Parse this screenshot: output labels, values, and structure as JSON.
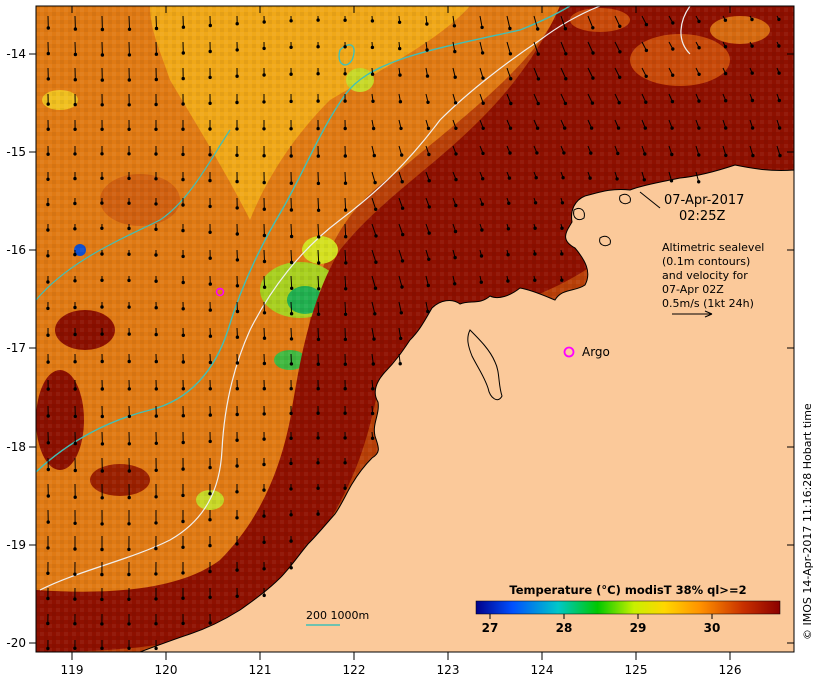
{
  "map": {
    "timestamp_date": "07-Apr-2017",
    "timestamp_time": "02:25Z",
    "legend_lines": [
      "Altimetric sealevel",
      "(0.1m contours)",
      "and velocity for",
      "07-Apr 02Z",
      "0.5m/s (1kt 24h)"
    ],
    "argo_label": "Argo",
    "depth_legend": "200  1000m",
    "credit": "© IMOS 14-Apr-2017 11:16:28 Hobart time",
    "x_ticks": [
      "119",
      "120",
      "121",
      "122",
      "123",
      "124",
      "125",
      "126"
    ],
    "y_ticks": [
      "-14",
      "-15",
      "-16",
      "-17",
      "-18",
      "-19",
      "-20"
    ],
    "colorbar": {
      "title": "Temperature (°C) modisT 38% ql>=2",
      "ticks": [
        "27",
        "28",
        "29",
        "30"
      ],
      "range": [
        26.8,
        30.9
      ],
      "colors": [
        "#00008a",
        "#0050ff",
        "#00c8c8",
        "#00c800",
        "#c8f000",
        "#ffd700",
        "#ff9000",
        "#c83000",
        "#8b0000"
      ]
    },
    "land_color": "#fbc99a",
    "argo_color": "#ff00ff"
  }
}
